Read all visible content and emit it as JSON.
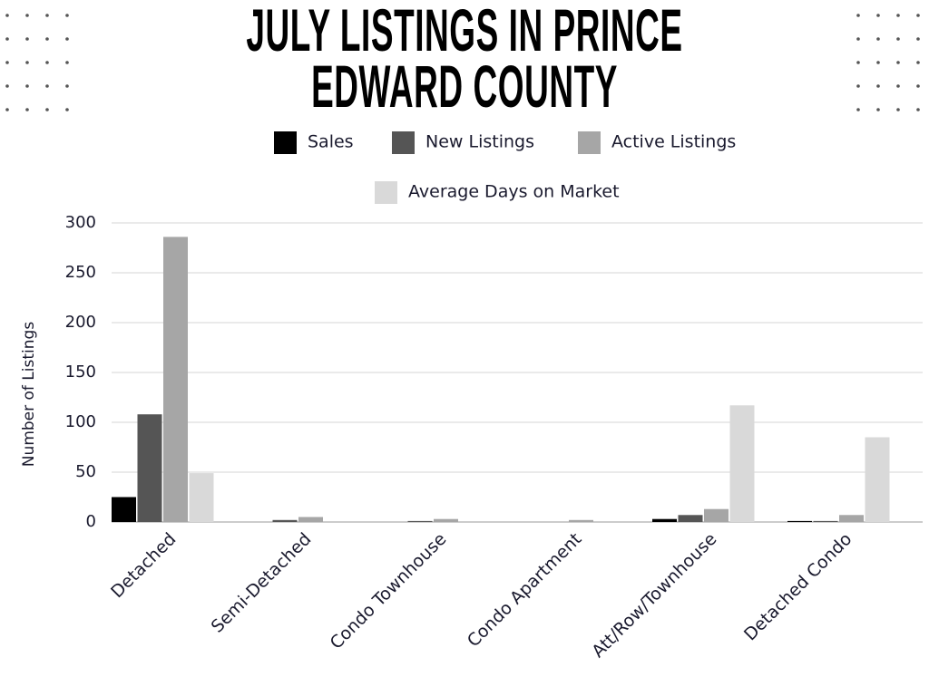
{
  "chart_data": {
    "type": "bar",
    "title": "JULY LISTINGS IN PRINCE EDWARD COUNTY",
    "y_label": "Number of Listings",
    "categories": [
      "Detached",
      "Semi-Detached",
      "Condo Townhouse",
      "Condo Apartment",
      "Att/Row/Townhouse",
      "Detached Condo"
    ],
    "series": [
      {
        "name": "Sales",
        "color": "#000000",
        "values": [
          25,
          0,
          0,
          0,
          3,
          1
        ]
      },
      {
        "name": "New Listings",
        "color": "#555555",
        "values": [
          108,
          2,
          1,
          0,
          7,
          1
        ]
      },
      {
        "name": "Active Listings",
        "color": "#a6a6a6",
        "values": [
          286,
          5,
          3,
          2,
          13,
          7
        ]
      },
      {
        "name": "Average Days on Market",
        "color": "#d9d9d9",
        "values": [
          49,
          0,
          0,
          0,
          117,
          85
        ]
      }
    ],
    "ylim": [
      0,
      300
    ],
    "yticks": [
      0,
      50,
      100,
      150,
      200,
      250,
      300
    ],
    "grid": true,
    "legend": "top"
  }
}
